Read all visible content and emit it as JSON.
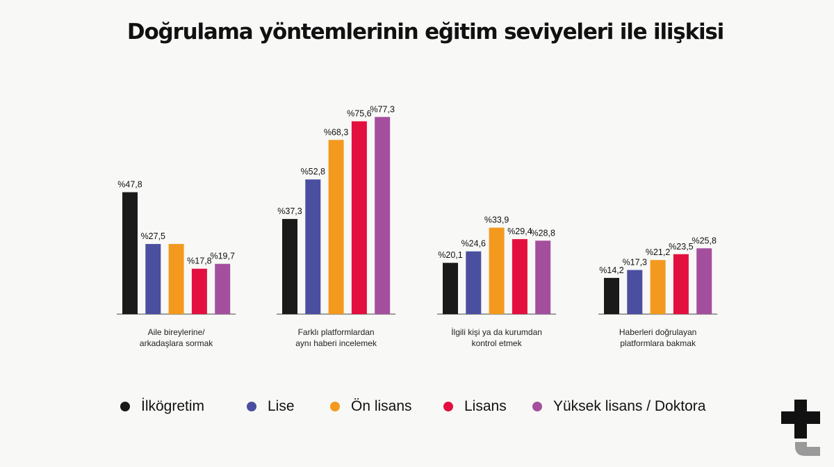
{
  "title": "Doğrulama yöntemlerinin eğitim seviyeleri ile ilişkisi",
  "colors": {
    "ilkogretim": "#1a1a1a",
    "lise": "#4b4fa0",
    "onlisans": "#f39a1e",
    "lisans": "#e3103f",
    "yukseklisans": "#a44f9e",
    "background": "#f8f8f6"
  },
  "logo_icon": "t-plus-logo-icon",
  "chart_data": {
    "type": "bar",
    "title": "Doğrulama yöntemlerinin eğitim seviyeleri ile ilişkisi",
    "categories": [
      [
        "Aile bireylerine/",
        "arkadaşlara sormak"
      ],
      [
        "Farklı platformlardan",
        "aynı haberi incelemek"
      ],
      [
        "İlgili kişi ya da kurumdan",
        "kontrol etmek"
      ],
      [
        "Haberleri doğrulayan",
        "platformlara bakmak"
      ]
    ],
    "series": [
      {
        "name": "İlkögretim",
        "color": "#1a1a1a",
        "values": [
          47.8,
          37.3,
          20.1,
          14.2
        ],
        "labels": [
          "%47,8",
          "%37,3",
          "%20,1",
          "%14,2"
        ]
      },
      {
        "name": "Lise",
        "color": "#4b4fa0",
        "values": [
          27.5,
          52.8,
          24.6,
          17.3
        ],
        "labels": [
          "%27,5",
          "%52,8",
          "%24,6",
          "%17,3"
        ]
      },
      {
        "name": "Ön lisans",
        "color": "#f39a1e",
        "values": [
          27.5,
          68.3,
          33.9,
          21.2
        ],
        "labels": [
          "",
          "%68,3",
          "%33,9",
          "%21,2"
        ]
      },
      {
        "name": "Lisans",
        "color": "#e3103f",
        "values": [
          17.8,
          75.6,
          29.4,
          23.5
        ],
        "labels": [
          "%17,8",
          "%75,6",
          "%29,4",
          "%23,5"
        ]
      },
      {
        "name": "Yüksek lisans / Doktora",
        "color": "#a44f9e",
        "values": [
          19.7,
          77.3,
          28.8,
          25.8
        ],
        "labels": [
          "%19,7",
          "%77,3",
          "%28,8",
          "%25,8"
        ]
      }
    ],
    "unit": "%",
    "ylim": [
      0,
      100
    ],
    "grid": false,
    "legend": "bottom"
  }
}
